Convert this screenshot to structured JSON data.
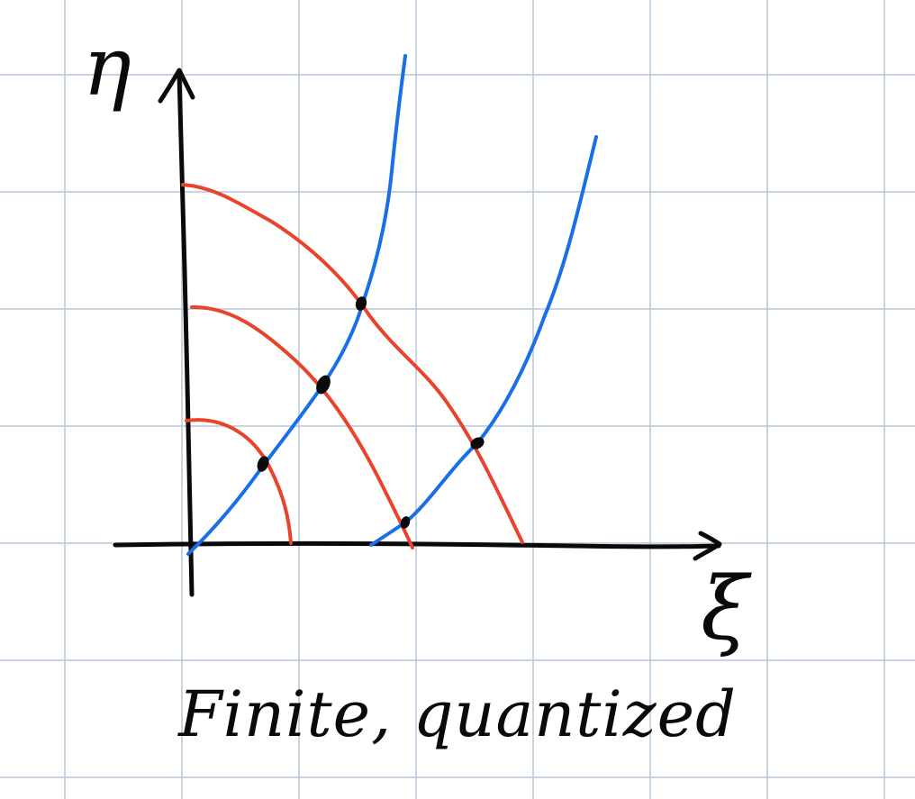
{
  "diagram": {
    "axis_labels": {
      "vertical": "η",
      "horizontal": "ξ"
    },
    "caption": "Finite, quantized",
    "colors": {
      "background": "#ffffff",
      "grid": "#b7c6d8",
      "axes": "#0a0a0a",
      "red_curves": "#e8442c",
      "blue_curves": "#1a6fe8",
      "intersection_dots": "#0a0a0a"
    },
    "elements": {
      "red_curves": 3,
      "blue_curves": 2,
      "intersection_points": 5
    }
  }
}
